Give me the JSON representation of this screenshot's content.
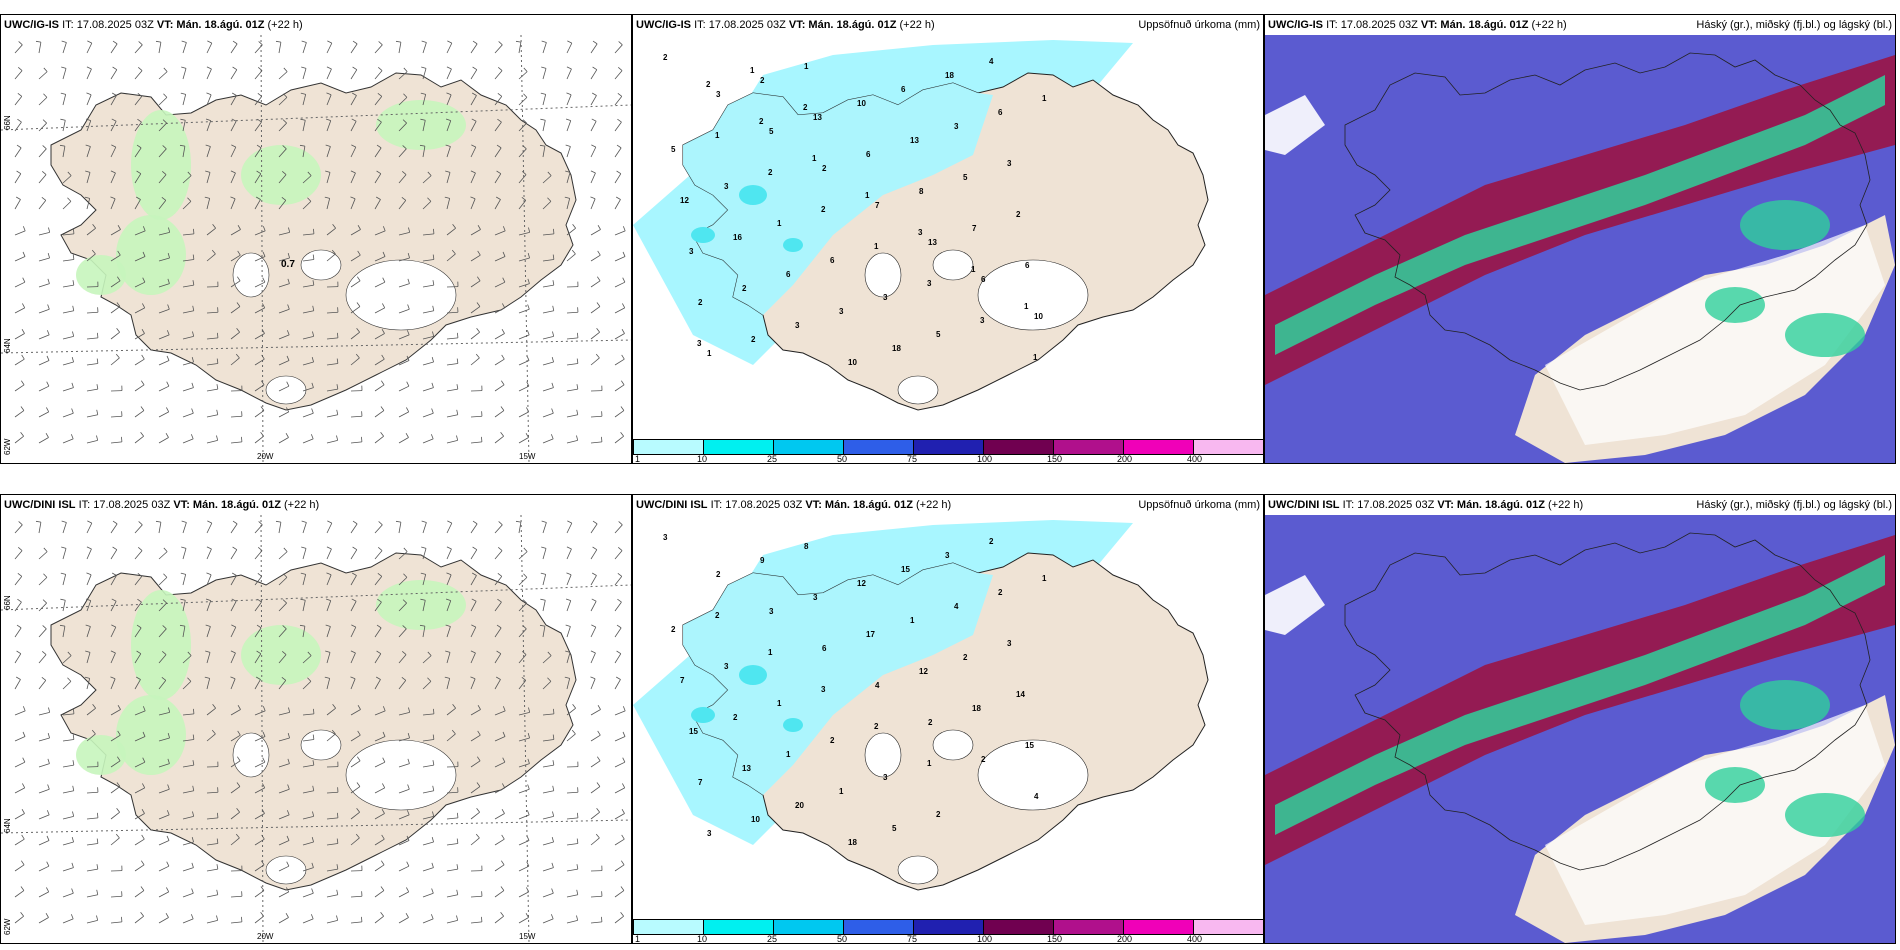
{
  "colors": {
    "land": "#efe3d5",
    "precip_light": "#a8f6ff",
    "precip_mid": "#4fe6f0",
    "green": "#c7f5bd",
    "cloud_high": "#5b5bd0",
    "cloud_mid": "#991648",
    "cloud_low": "#2fd09b"
  },
  "precip_legend": {
    "labels": [
      "1",
      "10",
      "25",
      "50",
      "75",
      "100",
      "150",
      "200",
      "400"
    ],
    "colors": [
      "#b8fbff",
      "#00f0f0",
      "#00c8f0",
      "#2e5ee8",
      "#2020b0",
      "#700050",
      "#b0108c",
      "#f000b8",
      "#f8b8f0"
    ]
  },
  "rows": [
    {
      "model": "UWC/IG-IS",
      "it": "IT: 17.08.2025 03Z",
      "vt_label": "VT:",
      "vt": "Mán. 18.ágú. 01Z",
      "lead": "(+22 h)",
      "wind": {
        "lat_labels": [
          "66N",
          "64N",
          "62W"
        ],
        "lon_labels": [
          "20W",
          "15W"
        ],
        "value_label": "0.7"
      },
      "precip": {
        "title": "Uppsöfnuð úrkoma (mm)",
        "values": [
          "2",
          "3",
          "5",
          "2",
          "7",
          "13",
          "6",
          "10",
          "1",
          "2",
          "13",
          "6",
          "8",
          "7",
          "6",
          "2",
          "2",
          "1",
          "10",
          "13",
          "5",
          "2",
          "3",
          "2",
          "3",
          "10",
          "6",
          "3",
          "3",
          "12",
          "16",
          "6",
          "3",
          "18",
          "18",
          "6",
          "5",
          "3",
          "1",
          "6",
          "3",
          "5",
          "4",
          "1",
          "1",
          "2",
          "2",
          "1",
          "3",
          "3",
          "1",
          "2",
          "2",
          "1",
          "1",
          "3",
          "1",
          "1",
          "3",
          "1",
          "2"
        ]
      },
      "cloud": {
        "title": "Háský (gr.), miðský (fj.bl.) og lágský (bl.)"
      }
    },
    {
      "model": "UWC/DINI ISL",
      "it": "IT: 17.08.2025 03Z",
      "vt_label": "VT:",
      "vt": "Mán. 18.ágú. 01Z",
      "lead": "(+22 h)",
      "wind": {
        "lat_labels": [
          "66N",
          "64N",
          "62W"
        ],
        "lon_labels": [
          "20W",
          "15W"
        ],
        "value_label": ""
      },
      "precip": {
        "title": "Uppsöfnuð úrkoma (mm)",
        "values": [
          "3",
          "2",
          "3",
          "6",
          "4",
          "2",
          "2",
          "4",
          "3",
          "9",
          "3",
          "17",
          "12",
          "18",
          "15",
          "7",
          "10",
          "8",
          "12",
          "1",
          "2",
          "14",
          "15",
          "13",
          "20",
          "18",
          "15",
          "4",
          "3",
          "7",
          "2",
          "1",
          "1",
          "5",
          "3",
          "2",
          "2",
          "3",
          "1",
          "2",
          "3",
          "2",
          "2",
          "1",
          "2",
          "1",
          "3",
          "2",
          "1"
        ]
      },
      "cloud": {
        "title": "Háský (gr.), miðský (fj.bl.) og lágský (bl.)"
      }
    }
  ]
}
